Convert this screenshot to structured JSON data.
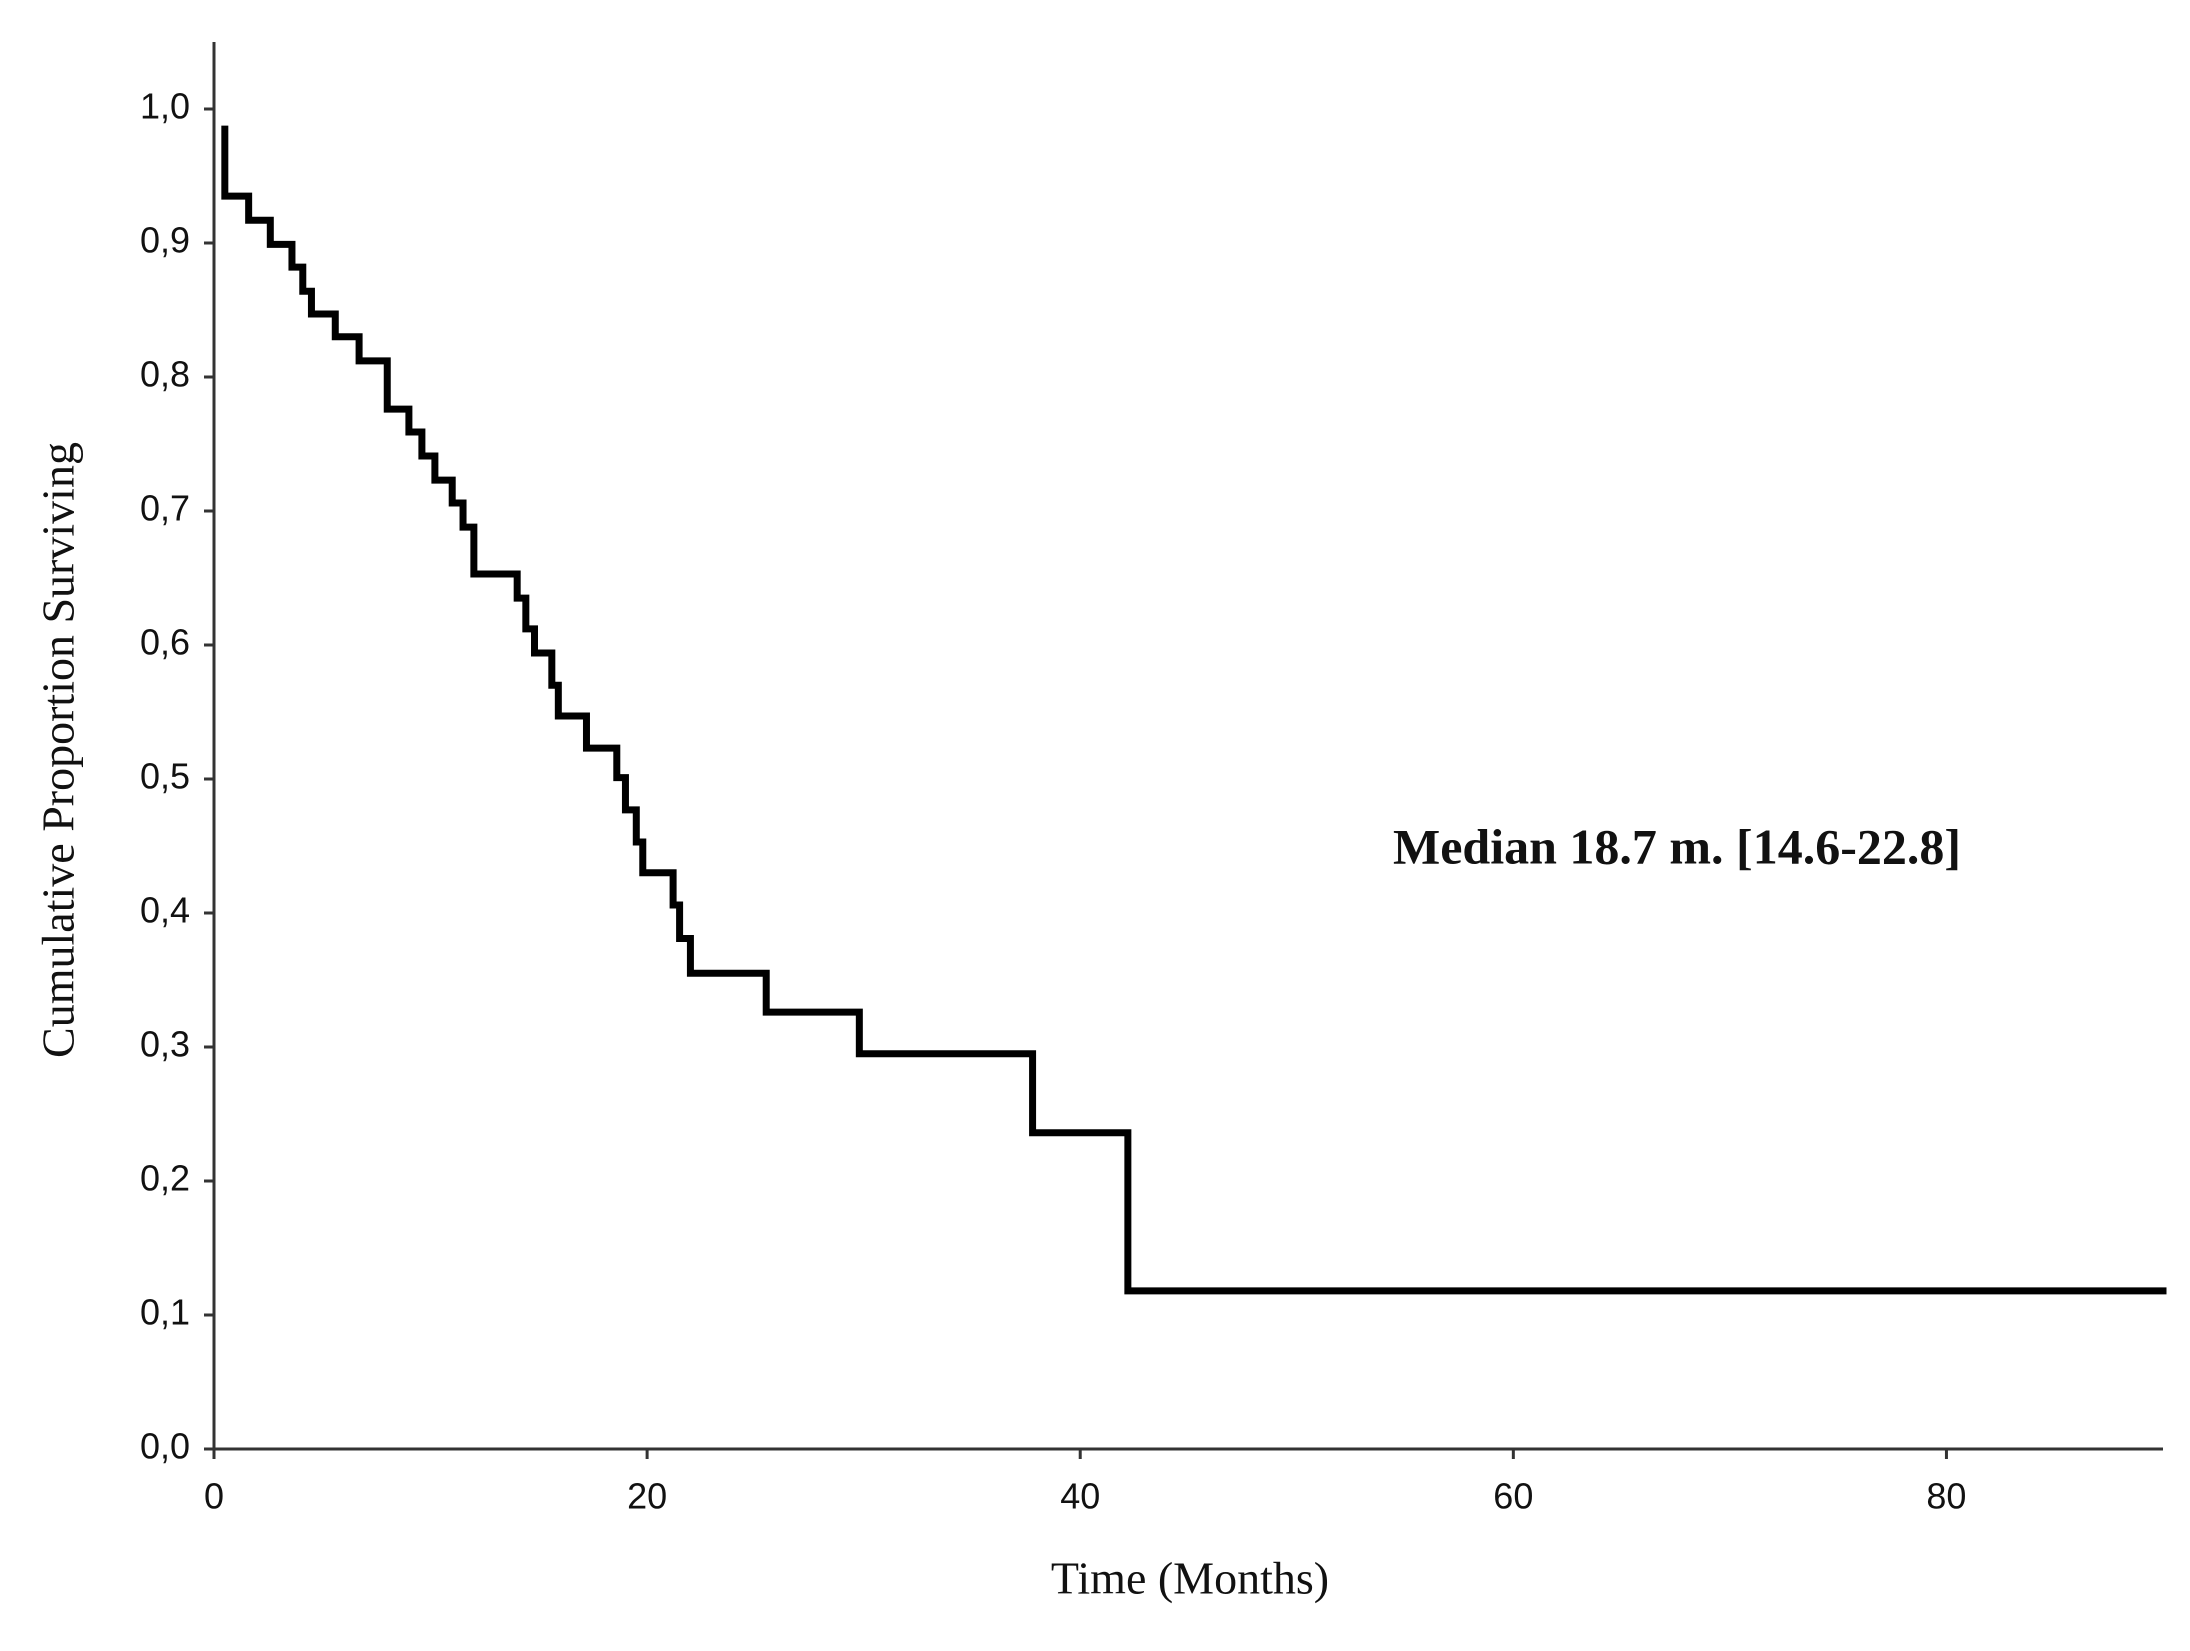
{
  "chart_data": {
    "type": "line",
    "step": "post",
    "xlabel": "Time (Months)",
    "ylabel": "Cumulative Proportion Surviving",
    "annotation": "Median 18.7 m. [14.6-22.8]",
    "x": [
      0.5,
      0.5,
      1.6,
      2.6,
      3.6,
      4.1,
      4.5,
      5.6,
      6.7,
      8.0,
      9.0,
      9.6,
      10.2,
      11.0,
      11.5,
      12.0,
      14.0,
      14.4,
      14.8,
      15.6,
      15.9,
      17.2,
      18.6,
      19.0,
      19.5,
      19.8,
      21.2,
      21.5,
      22.0,
      25.5,
      29.8,
      37.8,
      42.2,
      90
    ],
    "series": [
      {
        "color": "#000000",
        "values": [
          0.985,
          0.935,
          0.917,
          0.899,
          0.882,
          0.864,
          0.847,
          0.83,
          0.812,
          0.776,
          0.759,
          0.741,
          0.723,
          0.706,
          0.688,
          0.653,
          0.635,
          0.612,
          0.594,
          0.57,
          0.547,
          0.523,
          0.501,
          0.477,
          0.453,
          0.43,
          0.406,
          0.381,
          0.355,
          0.326,
          0.295,
          0.236,
          0.118,
          0.118
        ]
      }
    ],
    "xlim": [
      0,
      90
    ],
    "xticks": [
      0,
      20,
      40,
      60,
      80
    ],
    "ylim": [
      0,
      1.05
    ],
    "yticks": [
      {
        "value": 0,
        "label": "0,0"
      },
      {
        "value": 0.1,
        "label": "0,1"
      },
      {
        "value": 0.2,
        "label": "0,2"
      },
      {
        "value": 0.3,
        "label": "0,3"
      },
      {
        "value": 0.4,
        "label": "0,4"
      },
      {
        "value": 0.5,
        "label": "0,5"
      },
      {
        "value": 0.6,
        "label": "0,6"
      },
      {
        "value": 0.7,
        "label": "0,7"
      },
      {
        "value": 0.8,
        "label": "0,8"
      },
      {
        "value": 0.9,
        "label": "0,9"
      },
      {
        "value": 1,
        "label": "1,0"
      }
    ],
    "grid": false
  }
}
